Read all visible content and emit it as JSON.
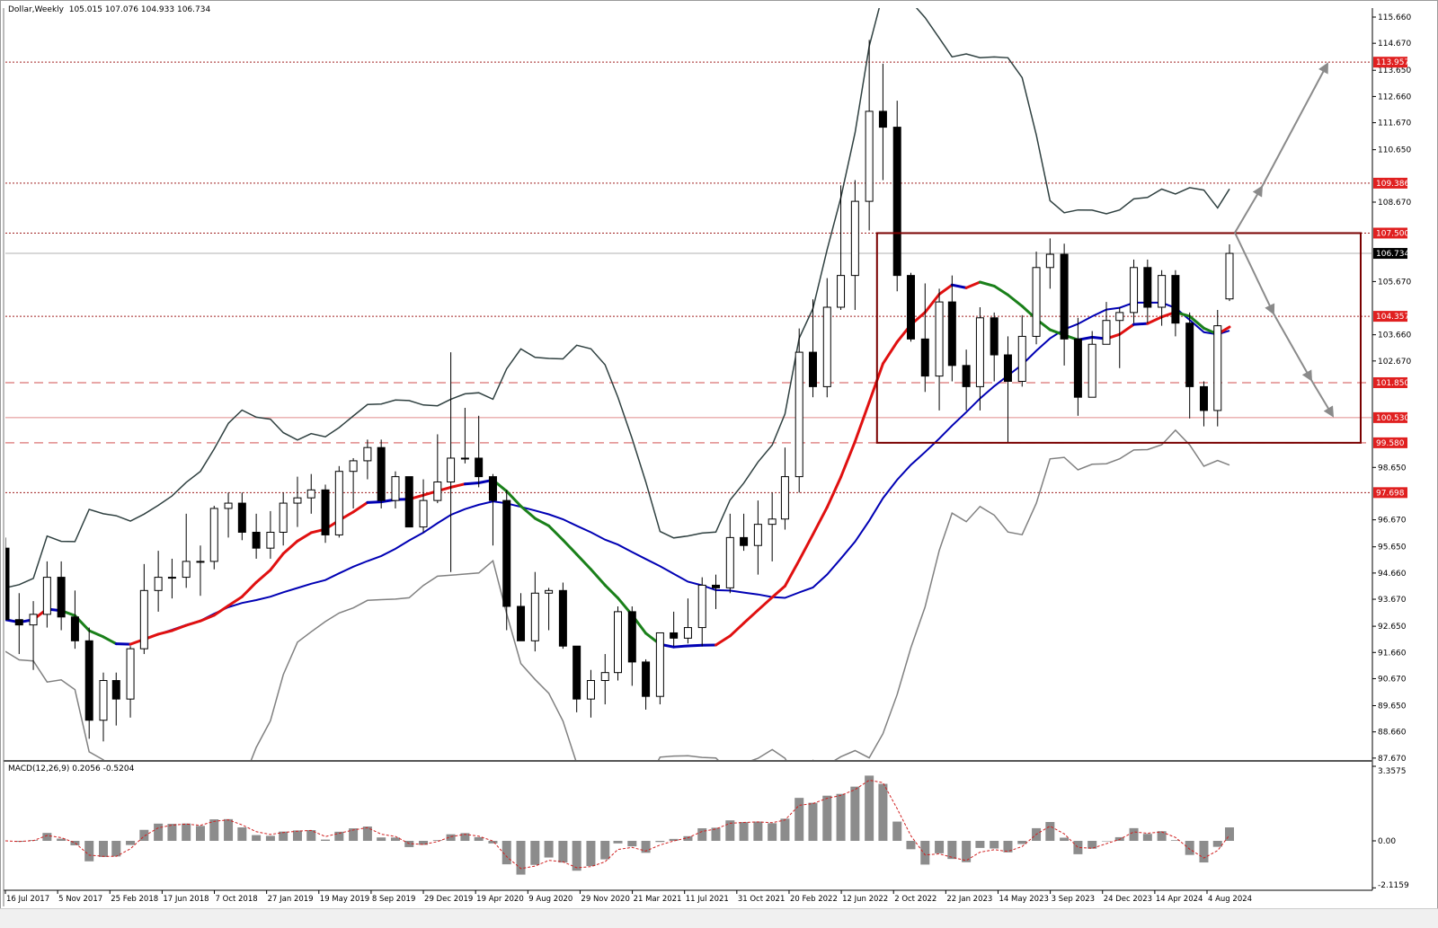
{
  "header": {
    "symbol_timeframe": "Dollar,Weekly",
    "ohlc": "105.015 107.076 104.933 106.734"
  },
  "macd": {
    "label": "MACD(12,26,9) 0.2056 -0.5204"
  },
  "colors": {
    "bull_body": "#ffffff",
    "bear_body": "#000000",
    "candle_outline": "#000000",
    "ma_slow": "#0000b4",
    "ma_fast_rising": "#e01010",
    "ma_fast_falling": "#1a801a",
    "ma_fast_flat": "#0000b4",
    "band_upper": "#2f4040",
    "band_lower": "#808080",
    "level_dark": "#a02020",
    "level_light": "#e08a8a",
    "box": "#7a0000",
    "arrow": "#8a8a8a",
    "macd_hist": "#8c8c8c",
    "macd_signal": "#d02020",
    "current_price_bg": "#000000",
    "level_label_bg": "#e02020"
  },
  "chart_data": {
    "type": "candlestick",
    "title": "Dollar,Weekly",
    "price_axis": {
      "range": [
        87.67,
        115.66
      ],
      "ticks": [
        "115.660",
        "114.670",
        "113.650",
        "112.660",
        "111.670",
        "110.650",
        "108.670",
        "105.670",
        "103.660",
        "102.670",
        "98.650",
        "96.670",
        "95.650",
        "94.660",
        "93.670",
        "92.650",
        "91.660",
        "90.670",
        "89.650",
        "88.660",
        "87.670"
      ]
    },
    "time_labels": [
      "16 Jul 2017",
      "5 Nov 2017",
      "25 Feb 2018",
      "17 Jun 2018",
      "7 Oct 2018",
      "27 Jan 2019",
      "19 May 2019",
      "8 Sep 2019",
      "29 Dec 2019",
      "19 Apr 2020",
      "9 Aug 2020",
      "29 Nov 2020",
      "21 Mar 2021",
      "11 Jul 2021",
      "31 Oct 2021",
      "20 Feb 2022",
      "12 Jun 2022",
      "2 Oct 2022",
      "22 Jan 2023",
      "14 May 2023",
      "3 Sep 2023",
      "24 Dec 2023",
      "14 Apr 2024",
      "4 Aug 2024"
    ],
    "current_price": {
      "value": 106.734,
      "label": "106.734"
    },
    "levels": [
      {
        "value": 113.957,
        "label": "113.957",
        "style": "dotted"
      },
      {
        "value": 109.386,
        "label": "109.386",
        "style": "dotted"
      },
      {
        "value": 107.5,
        "label": "107.500",
        "style": "dotted"
      },
      {
        "value": 104.357,
        "label": "104.357",
        "style": "dotted"
      },
      {
        "value": 101.85,
        "label": "101.850",
        "style": "dashed"
      },
      {
        "value": 100.53,
        "label": "100.530",
        "style": "solid"
      },
      {
        "value": 99.58,
        "label": "99.580",
        "style": "dashed"
      },
      {
        "value": 97.698,
        "label": "97.698",
        "style": "dotted"
      }
    ],
    "range_box": {
      "top": 107.5,
      "bottom": 99.58,
      "start": "2022-10-02"
    },
    "indicators": [
      "moving average (fast, slope-coloured)",
      "moving average (slow)",
      "bollinger bands",
      "MACD(12,26,9)"
    ],
    "macd_axis": {
      "ticks": [
        "3.3575",
        "0.00",
        "-2.1159"
      ],
      "range": [
        -2.1159,
        3.3575
      ]
    },
    "candles_columns": [
      "date",
      "open",
      "high",
      "low",
      "close"
    ],
    "candles": [
      [
        "2017-07-16",
        95.6,
        96.0,
        92.9,
        92.9
      ],
      [
        "2017-08-15",
        92.9,
        93.9,
        91.6,
        92.7
      ],
      [
        "2017-09-15",
        92.7,
        93.6,
        91.0,
        93.1
      ],
      [
        "2017-10-15",
        93.1,
        95.1,
        92.6,
        94.5
      ],
      [
        "2017-11-15",
        94.5,
        95.1,
        92.5,
        93.0
      ],
      [
        "2017-12-15",
        93.0,
        94.0,
        91.8,
        92.1
      ],
      [
        "2018-01-15",
        92.1,
        92.6,
        88.4,
        89.1
      ],
      [
        "2018-02-15",
        89.1,
        90.9,
        88.3,
        90.6
      ],
      [
        "2018-03-15",
        90.6,
        90.9,
        88.9,
        89.9
      ],
      [
        "2018-04-15",
        89.9,
        91.9,
        89.2,
        91.8
      ],
      [
        "2018-05-15",
        91.8,
        95.0,
        91.6,
        94.0
      ],
      [
        "2018-06-15",
        94.0,
        95.5,
        93.2,
        94.5
      ],
      [
        "2018-07-15",
        94.5,
        95.2,
        93.7,
        94.5
      ],
      [
        "2018-08-15",
        94.5,
        96.9,
        94.1,
        95.1
      ],
      [
        "2018-09-15",
        95.1,
        95.7,
        93.8,
        95.1
      ],
      [
        "2018-10-15",
        95.1,
        97.2,
        94.8,
        97.1
      ],
      [
        "2018-11-15",
        97.1,
        97.7,
        96.0,
        97.3
      ],
      [
        "2018-12-15",
        97.3,
        97.7,
        95.9,
        96.2
      ],
      [
        "2019-01-15",
        96.2,
        96.9,
        95.2,
        95.6
      ],
      [
        "2019-02-15",
        95.6,
        97.0,
        95.2,
        96.2
      ],
      [
        "2019-03-15",
        96.2,
        97.7,
        95.7,
        97.3
      ],
      [
        "2019-04-15",
        97.3,
        98.3,
        96.4,
        97.5
      ],
      [
        "2019-05-15",
        97.5,
        98.4,
        96.9,
        97.8
      ],
      [
        "2019-06-15",
        97.8,
        98.0,
        95.8,
        96.1
      ],
      [
        "2019-07-15",
        96.1,
        98.7,
        96.0,
        98.5
      ],
      [
        "2019-08-15",
        98.5,
        99.0,
        97.1,
        98.9
      ],
      [
        "2019-09-15",
        98.9,
        99.7,
        98.2,
        99.4
      ],
      [
        "2019-10-15",
        99.4,
        99.7,
        97.1,
        97.4
      ],
      [
        "2019-11-15",
        97.4,
        98.5,
        97.1,
        98.3
      ],
      [
        "2019-12-15",
        98.3,
        98.3,
        96.4,
        96.4
      ],
      [
        "2020-01-15",
        96.4,
        98.2,
        96.2,
        97.4
      ],
      [
        "2020-02-15",
        97.4,
        99.9,
        97.3,
        98.1
      ],
      [
        "2020-03-15",
        98.1,
        103.0,
        94.7,
        99.0
      ],
      [
        "2020-04-15",
        99.0,
        100.9,
        98.8,
        99.0
      ],
      [
        "2020-05-15",
        99.0,
        100.6,
        97.9,
        98.3
      ],
      [
        "2020-06-15",
        98.3,
        98.4,
        95.7,
        97.4
      ],
      [
        "2020-07-15",
        97.4,
        97.8,
        92.5,
        93.4
      ],
      [
        "2020-08-15",
        93.4,
        93.9,
        92.2,
        92.1
      ],
      [
        "2020-09-15",
        92.1,
        94.7,
        91.7,
        93.9
      ],
      [
        "2020-10-15",
        93.9,
        94.1,
        92.5,
        94.0
      ],
      [
        "2020-11-15",
        94.0,
        94.3,
        91.8,
        91.9
      ],
      [
        "2020-12-15",
        91.9,
        91.9,
        89.4,
        89.9
      ],
      [
        "2021-01-15",
        89.9,
        91.0,
        89.2,
        90.6
      ],
      [
        "2021-02-15",
        90.6,
        91.6,
        89.7,
        90.9
      ],
      [
        "2021-03-15",
        90.9,
        93.4,
        90.6,
        93.2
      ],
      [
        "2021-04-15",
        93.2,
        93.4,
        90.4,
        91.3
      ],
      [
        "2021-05-15",
        91.3,
        91.4,
        89.5,
        90.0
      ],
      [
        "2021-06-15",
        90.0,
        92.4,
        89.7,
        92.4
      ],
      [
        "2021-07-15",
        92.4,
        93.2,
        91.9,
        92.2
      ],
      [
        "2021-08-15",
        92.2,
        93.7,
        92.0,
        92.6
      ],
      [
        "2021-09-15",
        92.6,
        94.5,
        91.9,
        94.2
      ],
      [
        "2021-10-15",
        94.2,
        94.6,
        93.3,
        94.1
      ],
      [
        "2021-11-15",
        94.1,
        96.9,
        93.9,
        96.0
      ],
      [
        "2021-12-15",
        96.0,
        96.9,
        95.5,
        95.7
      ],
      [
        "2022-01-15",
        95.7,
        97.4,
        94.6,
        96.5
      ],
      [
        "2022-02-15",
        96.5,
        97.7,
        95.1,
        96.7
      ],
      [
        "2022-03-15",
        96.7,
        99.4,
        96.3,
        98.3
      ],
      [
        "2022-04-15",
        98.3,
        103.9,
        97.7,
        103.0
      ],
      [
        "2022-05-15",
        103.0,
        105.0,
        101.3,
        101.7
      ],
      [
        "2022-06-15",
        101.7,
        105.8,
        101.3,
        104.7
      ],
      [
        "2022-07-15",
        104.7,
        109.3,
        104.6,
        105.9
      ],
      [
        "2022-08-15",
        105.9,
        109.5,
        104.6,
        108.7
      ],
      [
        "2022-09-15",
        108.7,
        114.8,
        107.6,
        112.1
      ],
      [
        "2022-10-15",
        112.1,
        113.9,
        109.5,
        111.5
      ],
      [
        "2022-11-15",
        111.5,
        112.5,
        105.3,
        105.9
      ],
      [
        "2022-12-15",
        105.9,
        106.0,
        103.4,
        103.5
      ],
      [
        "2023-01-15",
        103.5,
        105.6,
        101.5,
        102.1
      ],
      [
        "2023-02-15",
        102.1,
        105.4,
        100.8,
        104.9
      ],
      [
        "2023-03-15",
        104.9,
        105.9,
        101.9,
        102.5
      ],
      [
        "2023-04-15",
        102.5,
        103.1,
        100.8,
        101.7
      ],
      [
        "2023-05-15",
        101.7,
        104.7,
        100.8,
        104.3
      ],
      [
        "2023-06-15",
        104.3,
        104.5,
        101.9,
        102.9
      ],
      [
        "2023-07-15",
        102.9,
        103.6,
        99.6,
        101.9
      ],
      [
        "2023-08-15",
        101.9,
        104.4,
        101.7,
        103.6
      ],
      [
        "2023-09-15",
        103.6,
        106.8,
        103.3,
        106.2
      ],
      [
        "2023-10-15",
        106.2,
        107.3,
        105.4,
        106.7
      ],
      [
        "2023-11-15",
        106.7,
        107.1,
        102.5,
        103.5
      ],
      [
        "2023-12-15",
        103.5,
        104.3,
        100.6,
        101.3
      ],
      [
        "2024-01-15",
        101.3,
        103.8,
        101.3,
        103.3
      ],
      [
        "2024-02-15",
        103.3,
        104.9,
        103.4,
        104.2
      ],
      [
        "2024-03-15",
        104.2,
        104.7,
        102.4,
        104.5
      ],
      [
        "2024-04-15",
        104.5,
        106.5,
        104.1,
        106.2
      ],
      [
        "2024-05-15",
        106.2,
        106.5,
        104.1,
        104.7
      ],
      [
        "2024-06-15",
        104.7,
        106.1,
        104.0,
        105.9
      ],
      [
        "2024-07-15",
        105.9,
        106.1,
        103.6,
        104.1
      ],
      [
        "2024-08-15",
        104.1,
        104.5,
        100.5,
        101.7
      ],
      [
        "2024-09-15",
        101.7,
        101.9,
        100.2,
        100.8
      ],
      [
        "2024-10-15",
        100.8,
        104.6,
        100.2,
        104.0
      ],
      [
        "2024-11-10",
        105.015,
        107.076,
        104.933,
        106.734
      ]
    ]
  }
}
